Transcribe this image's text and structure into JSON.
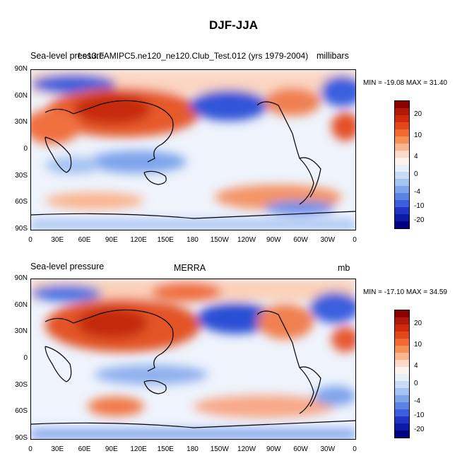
{
  "title": "DJF-JJA",
  "panels": [
    {
      "left": "Sea-level pressure",
      "center": "f.e13.FAMIPC5.ne120_ne120.Club_Test.012 (yrs 1979-2004)",
      "right": "millibars",
      "minmax": "MIN = -19.08 MAX =  31.40"
    },
    {
      "left": "Sea-level pressure",
      "center": "MERRA",
      "right": "mb",
      "minmax": "MIN = -17.10 MAX =  34.59"
    }
  ],
  "lat_labels": [
    "90N",
    "60N",
    "30N",
    "0",
    "30S",
    "60S",
    "90S"
  ],
  "lon_labels": [
    "0",
    "30E",
    "60E",
    "90E",
    "120E",
    "150E",
    "180",
    "150W",
    "120W",
    "90W",
    "60W",
    "30W",
    "0"
  ],
  "colorbar": {
    "labels": [
      "20",
      "10",
      "4",
      "0",
      "-4",
      "-10",
      "-20"
    ],
    "colors": [
      "#8b0000",
      "#b01808",
      "#cf2a0c",
      "#e4481a",
      "#f06a32",
      "#f79055",
      "#fbb48e",
      "#fddac8",
      "#fdf2ec",
      "#e8f0fc",
      "#c8dcf8",
      "#a4c2f2",
      "#7ea4ec",
      "#5b82e6",
      "#3a5ede",
      "#2035c8",
      "#0d1aa6",
      "#000080"
    ]
  }
}
